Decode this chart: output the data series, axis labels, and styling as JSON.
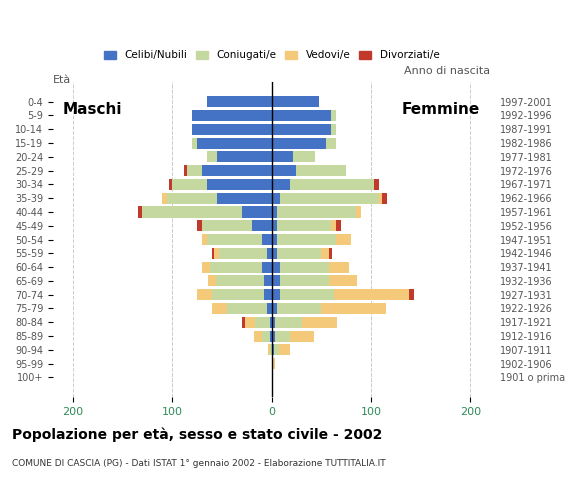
{
  "age_groups": [
    "100+",
    "95-99",
    "90-94",
    "85-89",
    "80-84",
    "75-79",
    "70-74",
    "65-69",
    "60-64",
    "55-59",
    "50-54",
    "45-49",
    "40-44",
    "35-39",
    "30-34",
    "25-29",
    "20-24",
    "15-19",
    "10-14",
    "5-9",
    "0-4"
  ],
  "birth_years": [
    "1901 o prima",
    "1902-1906",
    "1907-1911",
    "1912-1916",
    "1917-1921",
    "1922-1926",
    "1927-1931",
    "1932-1936",
    "1937-1941",
    "1942-1946",
    "1947-1951",
    "1952-1956",
    "1957-1961",
    "1962-1966",
    "1967-1971",
    "1972-1976",
    "1977-1981",
    "1982-1986",
    "1987-1991",
    "1992-1996",
    "1997-2001"
  ],
  "males": {
    "celibe": [
      0,
      0,
      0,
      2,
      2,
      5,
      8,
      8,
      10,
      5,
      10,
      20,
      30,
      55,
      65,
      70,
      55,
      75,
      80,
      80,
      65
    ],
    "coniugato": [
      0,
      0,
      2,
      8,
      15,
      40,
      52,
      48,
      52,
      48,
      55,
      50,
      100,
      50,
      35,
      15,
      10,
      5,
      0,
      0,
      0
    ],
    "vedovo": [
      0,
      0,
      2,
      8,
      10,
      15,
      15,
      8,
      8,
      5,
      5,
      0,
      0,
      5,
      0,
      0,
      0,
      0,
      0,
      0,
      0
    ],
    "divorziato": [
      0,
      0,
      0,
      0,
      3,
      0,
      0,
      0,
      0,
      2,
      0,
      5,
      5,
      0,
      3,
      3,
      0,
      0,
      0,
      0,
      0
    ]
  },
  "females": {
    "nubile": [
      0,
      0,
      2,
      3,
      3,
      5,
      8,
      8,
      8,
      5,
      5,
      5,
      5,
      8,
      18,
      25,
      22,
      55,
      60,
      60,
      48
    ],
    "coniugata": [
      0,
      0,
      5,
      15,
      28,
      45,
      55,
      50,
      50,
      45,
      60,
      55,
      80,
      100,
      85,
      50,
      22,
      10,
      5,
      5,
      0
    ],
    "vedova": [
      0,
      3,
      12,
      25,
      35,
      65,
      75,
      28,
      20,
      8,
      15,
      5,
      5,
      3,
      0,
      0,
      0,
      0,
      0,
      0,
      0
    ],
    "divorziata": [
      0,
      0,
      0,
      0,
      0,
      0,
      5,
      0,
      0,
      3,
      0,
      5,
      0,
      5,
      5,
      0,
      0,
      0,
      0,
      0,
      0
    ]
  },
  "colors": {
    "celibe": "#4472C4",
    "coniugato": "#C5D8A0",
    "vedovo": "#F5C97A",
    "divorziato": "#C0392B"
  },
  "xlim": 220,
  "title": "Popolazione per età, sesso e stato civile - 2002",
  "subtitle": "COMUNE DI CASCIA (PG) - Dati ISTAT 1° gennaio 2002 - Elaborazione TUTTITALIA.IT",
  "xlabel_left": "Maschi",
  "xlabel_right": "Femmine",
  "ylabel_left": "Età",
  "ylabel_right": "Anno di nascita",
  "xtick_labels": [
    "200",
    "100",
    "0",
    "100",
    "200"
  ],
  "xtick_vals": [
    -200,
    -100,
    0,
    100,
    200
  ],
  "bg_color": "#FFFFFF",
  "bar_height": 0.8,
  "grid_color": "#CCCCCC"
}
